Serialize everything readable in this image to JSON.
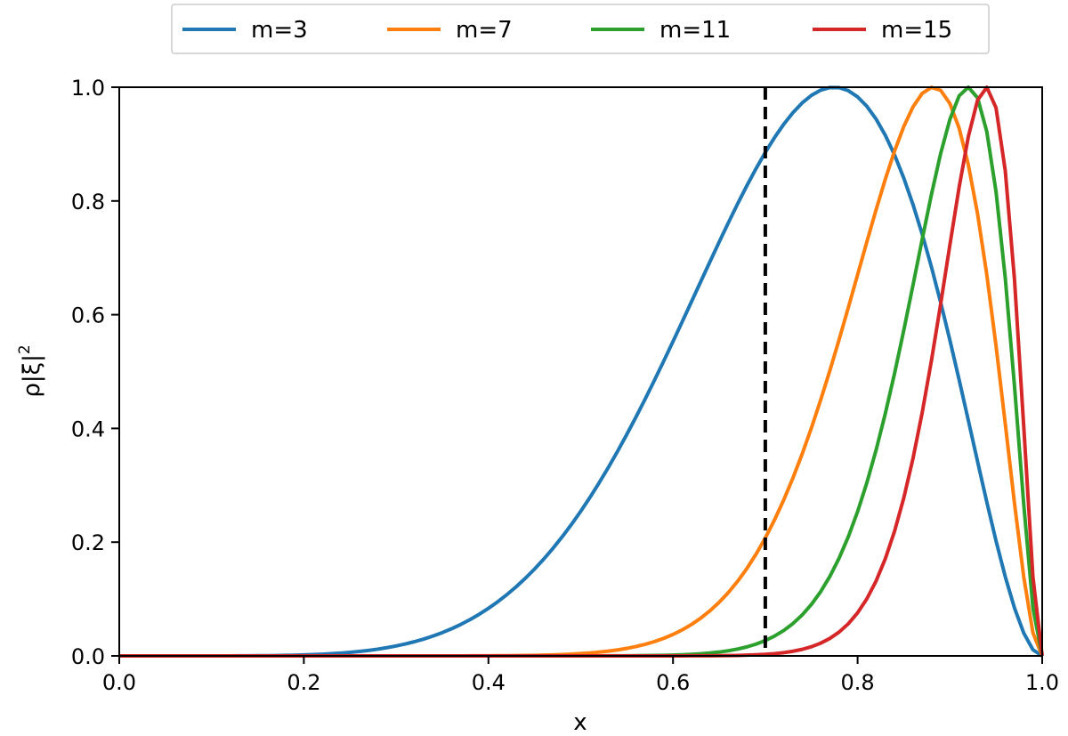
{
  "chart_data": {
    "type": "line",
    "xlabel": "x",
    "ylabel_symbol": "ρ|ξ|",
    "ylabel_exponent": "2",
    "xlim": [
      0.0,
      1.0
    ],
    "ylim": [
      0.0,
      1.0
    ],
    "x_ticks": [
      "0.0",
      "0.2",
      "0.4",
      "0.6",
      "0.8",
      "1.0"
    ],
    "y_ticks": [
      "0.0",
      "0.2",
      "0.4",
      "0.6",
      "0.8",
      "1.0"
    ],
    "grid": false,
    "legend_position": "top-center",
    "vline": {
      "x": 0.7,
      "style": "dashed",
      "color": "#000000"
    },
    "series": [
      {
        "name": "m=3",
        "color": "#1f77b4",
        "m": 3
      },
      {
        "name": "m=7",
        "color": "#ff7f0e",
        "m": 7
      },
      {
        "name": "m=11",
        "color": "#2ca02c",
        "m": 11
      },
      {
        "name": "m=15",
        "color": "#d62728",
        "m": 15
      }
    ]
  }
}
